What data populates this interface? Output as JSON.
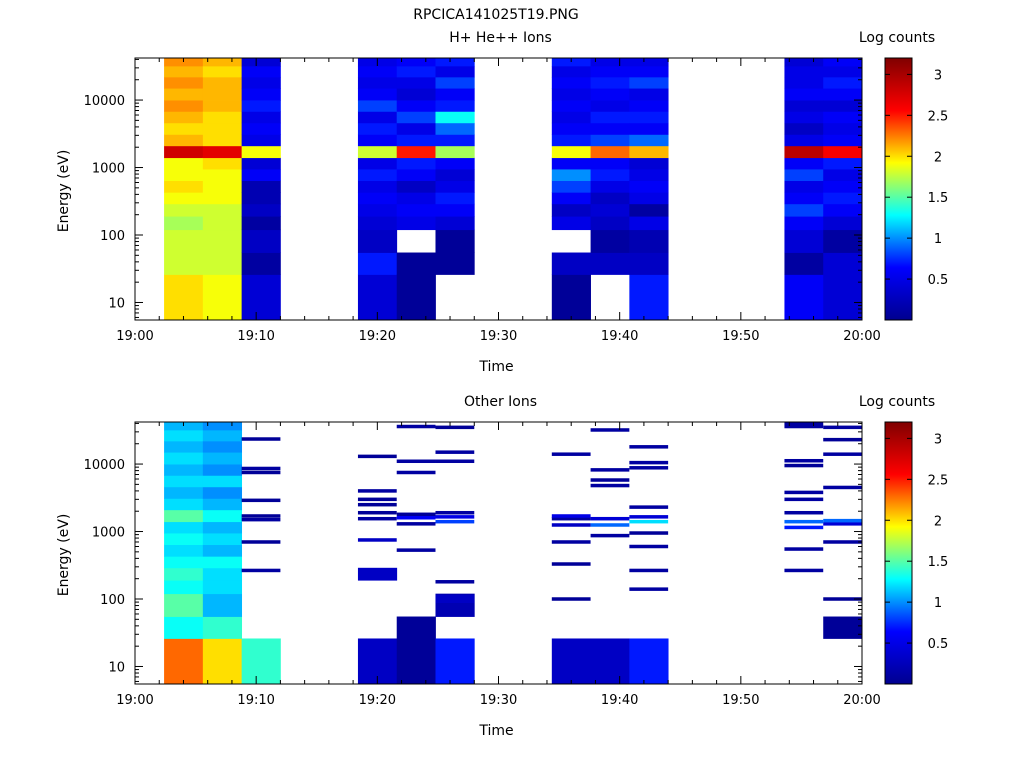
{
  "figure": {
    "title": "RPCICA141025T19.PNG"
  },
  "colormap": {
    "name": "jet",
    "stops": [
      "#00008f",
      "#0000ff",
      "#00ffff",
      "#ffff00",
      "#ff0000",
      "#800000"
    ]
  },
  "chart_data": [
    {
      "type": "heatmap",
      "title": "H+ He++ Ions",
      "xlabel": "Time",
      "ylabel": "Energy (eV)",
      "colorbar_label": "Log counts",
      "colorbar_ticks": [
        "0.5",
        "1",
        "1.5",
        "2",
        "2.5",
        "3"
      ],
      "colorbar_tick_values": [
        0.5,
        1,
        1.5,
        2,
        2.5,
        3
      ],
      "crange": [
        0,
        3.2
      ],
      "x_ticks": [
        "19:00",
        "19:10",
        "19:20",
        "19:30",
        "19:40",
        "19:50",
        "20:00"
      ],
      "x_tick_minutes": [
        0,
        10,
        20,
        30,
        40,
        50,
        60
      ],
      "xlim_minutes": [
        0,
        60
      ],
      "y_ticks": [
        "10",
        "100",
        "1000",
        "10000"
      ],
      "y_tick_values": [
        10,
        100,
        1000,
        10000
      ],
      "yscale": "log",
      "ylim": [
        5.5,
        42000
      ],
      "energy_bin_edges": [
        5.5,
        26,
        55,
        120,
        190,
        290,
        430,
        640,
        950,
        1400,
        2100,
        3100,
        4600,
        6800,
        10000,
        15000,
        22000,
        32000,
        42000
      ],
      "time_bin_edges_minutes": [
        2.4,
        5.6,
        8.8,
        12.0,
        18.4,
        21.6,
        24.8,
        28.0,
        34.4,
        37.6,
        40.8,
        44.0,
        53.6,
        56.8,
        60.0
      ],
      "columns": [
        {
          "t": [
            2.4,
            5.6
          ],
          "v": [
            2.0,
            1.8,
            1.8,
            1.7,
            1.8,
            1.9,
            2.0,
            1.9,
            1.9,
            2.8,
            2.1,
            2.0,
            2.1,
            2.2,
            2.1,
            2.2,
            2.1,
            2.2
          ]
        },
        {
          "t": [
            5.6,
            8.8
          ],
          "v": [
            1.9,
            1.8,
            1.8,
            1.8,
            1.8,
            1.9,
            1.9,
            1.9,
            2.0,
            2.7,
            2.0,
            2.0,
            2.0,
            2.1,
            2.1,
            2.1,
            2.0,
            2.1
          ]
        },
        {
          "t": [
            8.8,
            12.0
          ],
          "v": [
            0.4,
            0.1,
            0.3,
            0.1,
            0.3,
            0.2,
            0.2,
            0.6,
            0.4,
            1.9,
            0.5,
            0.6,
            0.5,
            0.7,
            0.6,
            0.5,
            0.6,
            0.4
          ]
        },
        {
          "t": [
            18.4,
            21.6
          ],
          "v": [
            0.4,
            0.7,
            0.3,
            0.4,
            0.5,
            0.6,
            0.5,
            0.7,
            0.5,
            1.8,
            0.6,
            0.7,
            0.5,
            0.8,
            0.6,
            0.5,
            0.6,
            0.5
          ]
        },
        {
          "t": [
            21.6,
            24.8
          ],
          "v": [
            0.05,
            0.05,
            null,
            0.5,
            0.6,
            0.5,
            0.3,
            0.6,
            0.7,
            2.5,
            0.7,
            0.5,
            0.8,
            0.6,
            0.4,
            0.5,
            0.7,
            0.6
          ]
        },
        {
          "t": [
            24.8,
            28.0
          ],
          "v": [
            null,
            0.05,
            0.05,
            0.4,
            0.6,
            0.7,
            0.5,
            0.4,
            0.6,
            1.7,
            0.7,
            0.9,
            1.3,
            0.7,
            0.6,
            0.8,
            0.5,
            0.7
          ]
        },
        {
          "t": [
            34.4,
            37.6
          ],
          "v": [
            0.05,
            0.3,
            null,
            0.5,
            0.3,
            0.6,
            0.8,
            1.0,
            0.6,
            1.9,
            0.7,
            0.6,
            0.5,
            0.6,
            0.5,
            0.6,
            0.5,
            0.7
          ]
        },
        {
          "t": [
            37.6,
            40.8
          ],
          "v": [
            null,
            0.3,
            0.1,
            0.3,
            0.4,
            0.3,
            0.5,
            0.7,
            0.6,
            2.3,
            0.8,
            0.6,
            0.7,
            0.5,
            0.6,
            0.7,
            0.6,
            0.5
          ]
        },
        {
          "t": [
            40.8,
            44.0
          ],
          "v": [
            0.7,
            0.3,
            0.2,
            0.5,
            0.1,
            0.5,
            0.6,
            0.5,
            0.4,
            2.1,
            0.9,
            0.6,
            0.7,
            0.6,
            0.5,
            0.8,
            0.6,
            0.5
          ]
        },
        {
          "t": [
            53.6,
            56.8
          ],
          "v": [
            0.6,
            0.1,
            0.4,
            0.6,
            0.8,
            0.6,
            0.5,
            0.8,
            0.6,
            2.9,
            0.5,
            0.3,
            0.5,
            0.4,
            0.6,
            0.5,
            0.5,
            0.4
          ]
        },
        {
          "t": [
            56.8,
            60.0
          ],
          "v": [
            0.4,
            0.4,
            0.1,
            0.4,
            0.6,
            0.7,
            0.6,
            0.5,
            0.7,
            2.6,
            0.6,
            0.5,
            0.6,
            0.4,
            0.6,
            0.7,
            0.5,
            0.6
          ]
        }
      ]
    },
    {
      "type": "heatmap",
      "title": "Other Ions",
      "xlabel": "Time",
      "ylabel": "Energy (eV)",
      "colorbar_label": "Log counts",
      "colorbar_ticks": [
        "0.5",
        "1",
        "1.5",
        "2",
        "2.5",
        "3"
      ],
      "colorbar_tick_values": [
        0.5,
        1,
        1.5,
        2,
        2.5,
        3
      ],
      "crange": [
        0,
        3.2
      ],
      "x_ticks": [
        "19:00",
        "19:10",
        "19:20",
        "19:30",
        "19:40",
        "19:50",
        "20:00"
      ],
      "x_tick_minutes": [
        0,
        10,
        20,
        30,
        40,
        50,
        60
      ],
      "xlim_minutes": [
        0,
        60
      ],
      "y_ticks": [
        "10",
        "100",
        "1000",
        "10000"
      ],
      "y_tick_values": [
        10,
        100,
        1000,
        10000
      ],
      "yscale": "log",
      "ylim": [
        5.5,
        42000
      ],
      "energy_bin_edges": [
        5.5,
        26,
        55,
        120,
        190,
        290,
        430,
        640,
        950,
        1400,
        2100,
        3100,
        4600,
        6800,
        10000,
        15000,
        22000,
        32000,
        42000
      ],
      "columns": [
        {
          "t": [
            2.4,
            5.6
          ],
          "v": [
            2.3,
            1.3,
            1.5,
            1.3,
            1.4,
            1.3,
            1.2,
            1.3,
            1.2,
            1.5,
            1.2,
            1.1,
            1.2,
            1.1,
            1.2,
            1.1,
            1.2,
            1.1
          ]
        },
        {
          "t": [
            5.6,
            8.8
          ],
          "v": [
            2.0,
            1.4,
            1.1,
            1.2,
            1.2,
            1.3,
            1.1,
            1.2,
            1.1,
            1.3,
            1.1,
            1.0,
            1.2,
            1.0,
            1.1,
            1.0,
            1.1,
            1.0
          ]
        },
        {
          "t": [
            8.8,
            12.0
          ],
          "v": [
            1.4,
            null,
            null,
            null,
            null,
            null,
            null,
            null,
            null,
            null,
            null,
            null,
            null,
            null,
            null,
            null,
            null,
            null
          ]
        },
        {
          "t": [
            18.4,
            21.6
          ],
          "v": [
            0.3,
            null,
            null,
            null,
            0.3,
            null,
            null,
            null,
            null,
            null,
            null,
            null,
            null,
            null,
            null,
            null,
            null,
            null
          ]
        },
        {
          "t": [
            21.6,
            24.8
          ],
          "v": [
            0.05,
            0.05,
            null,
            null,
            null,
            null,
            null,
            null,
            null,
            null,
            null,
            null,
            null,
            null,
            null,
            null,
            null,
            null
          ]
        },
        {
          "t": [
            24.8,
            28.0
          ],
          "v": [
            0.7,
            null,
            0.2,
            null,
            null,
            null,
            null,
            null,
            null,
            null,
            null,
            null,
            null,
            null,
            null,
            null,
            null,
            null
          ]
        },
        {
          "t": [
            34.4,
            37.6
          ],
          "v": [
            0.3,
            null,
            null,
            null,
            null,
            null,
            null,
            null,
            null,
            null,
            null,
            null,
            null,
            null,
            null,
            null,
            null,
            null
          ]
        },
        {
          "t": [
            37.6,
            40.8
          ],
          "v": [
            0.3,
            null,
            null,
            null,
            null,
            null,
            null,
            null,
            null,
            null,
            null,
            null,
            null,
            null,
            null,
            null,
            null,
            null
          ]
        },
        {
          "t": [
            40.8,
            44.0
          ],
          "v": [
            0.7,
            null,
            null,
            null,
            null,
            null,
            null,
            null,
            null,
            null,
            null,
            null,
            null,
            null,
            null,
            null,
            null,
            null
          ]
        },
        {
          "t": [
            53.6,
            56.8
          ],
          "v": [
            null,
            null,
            null,
            null,
            null,
            null,
            null,
            null,
            null,
            null,
            null,
            null,
            null,
            null,
            null,
            null,
            null,
            null
          ]
        },
        {
          "t": [
            56.8,
            60.0
          ],
          "v": [
            null,
            0.05,
            null,
            null,
            null,
            null,
            null,
            null,
            null,
            null,
            null,
            null,
            null,
            null,
            null,
            null,
            null,
            null
          ]
        }
      ],
      "lines": [
        {
          "t": [
            8.8,
            12.0
          ],
          "E": [
            265,
            700,
            1500,
            1700,
            2900,
            7500,
            8600,
            23500
          ],
          "v": [
            0.1,
            0.05,
            0.1,
            0.05,
            0.05,
            0.05,
            0.1,
            0.05
          ]
        },
        {
          "t": [
            18.4,
            21.6
          ],
          "E": [
            1550,
            1900,
            2500,
            3000,
            4000,
            13000,
            750
          ],
          "v": [
            0.1,
            0.05,
            0.05,
            0.05,
            0.1,
            0.05,
            0.3
          ]
        },
        {
          "t": [
            21.6,
            24.8
          ],
          "E": [
            530,
            1300,
            1600,
            1800,
            7500,
            11000,
            36000
          ],
          "v": [
            0.1,
            0.1,
            0.6,
            0.05,
            0.1,
            0.1,
            0.1
          ]
        },
        {
          "t": [
            24.8,
            28.0
          ],
          "E": [
            180,
            100,
            1400,
            1650,
            1900,
            11000,
            15000,
            35000
          ],
          "v": [
            0.1,
            0.3,
            0.8,
            0.5,
            0.1,
            0.1,
            0.1,
            0.05
          ]
        },
        {
          "t": [
            34.4,
            37.6
          ],
          "E": [
            100,
            330,
            700,
            1250,
            1550,
            1700,
            14000
          ],
          "v": [
            0.05,
            0.05,
            0.1,
            0.3,
            0.1,
            0.5,
            0.1
          ]
        },
        {
          "t": [
            37.6,
            40.8
          ],
          "E": [
            870,
            1250,
            1550,
            4800,
            5800,
            8200,
            32000
          ],
          "v": [
            0.1,
            0.9,
            0.4,
            0.1,
            0.05,
            0.1,
            0.1
          ]
        },
        {
          "t": [
            40.8,
            44.0
          ],
          "E": [
            140,
            265,
            600,
            950,
            1400,
            1650,
            2300,
            8800,
            10500,
            18000
          ],
          "v": [
            0.1,
            0.1,
            0.1,
            0.05,
            1.2,
            0.4,
            0.1,
            0.1,
            0.1,
            0.1
          ]
        },
        {
          "t": [
            53.6,
            56.8
          ],
          "E": [
            265,
            550,
            1150,
            1400,
            1900,
            3000,
            3800,
            9500,
            11200,
            36000,
            40000
          ],
          "v": [
            0.1,
            0.1,
            0.7,
            0.9,
            0.1,
            0.1,
            0.1,
            0.05,
            0.1,
            0.1,
            0.1
          ]
        },
        {
          "t": [
            56.8,
            60.0
          ],
          "E": [
            700,
            1300,
            1450,
            4500,
            14000,
            23000,
            35000,
            100
          ],
          "v": [
            0.1,
            0.4,
            0.9,
            0.1,
            0.1,
            0.05,
            0.1,
            0.05
          ]
        }
      ]
    }
  ]
}
